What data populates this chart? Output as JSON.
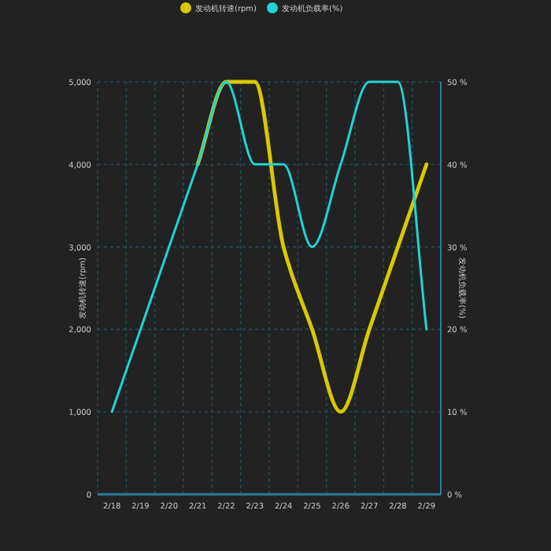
{
  "chart_data": {
    "type": "line",
    "categories": [
      "2/18",
      "2/19",
      "2/20",
      "2/21",
      "2/22",
      "2/23",
      "2/24",
      "2/25",
      "2/26",
      "2/27",
      "2/28",
      "2/29"
    ],
    "ylabel": "发动机转速(rpm)",
    "y2label": "发动机负载率(%)",
    "series": [
      {
        "name": "发动机转速(rpm)",
        "color": "#d9c800",
        "values": [
          null,
          null,
          null,
          4000,
          5000,
          5000,
          3000,
          2000,
          1000,
          2000,
          3000,
          4000
        ]
      },
      {
        "name": "发动机负载率(%)",
        "color": "#22d3d3",
        "axis": "y2",
        "values": [
          10,
          20,
          30,
          40,
          50,
          40,
          40,
          30,
          40,
          50,
          50,
          20
        ]
      }
    ],
    "ylim": [
      0,
      5000
    ],
    "yticks": [
      0,
      {
        "value": 1000,
        "label": "1,000"
      },
      {
        "value": 2000,
        "label": "2,000"
      },
      {
        "value": 3000,
        "label": "3,000"
      },
      {
        "value": 4000,
        "label": "4,000"
      },
      {
        "value": 5000,
        "label": "5,000"
      }
    ],
    "y2lim": [
      0,
      50
    ],
    "y2ticks": [
      {
        "value": 0,
        "label": "0 %"
      },
      {
        "value": 10,
        "label": "10 %"
      },
      {
        "value": 20,
        "label": "20 %"
      },
      {
        "value": 30,
        "label": "30 %"
      },
      {
        "value": 40,
        "label": "40 %"
      },
      {
        "value": 50,
        "label": "50 %"
      }
    ],
    "grid": true,
    "legend": "top",
    "marker": "none",
    "line_style": "solid"
  }
}
